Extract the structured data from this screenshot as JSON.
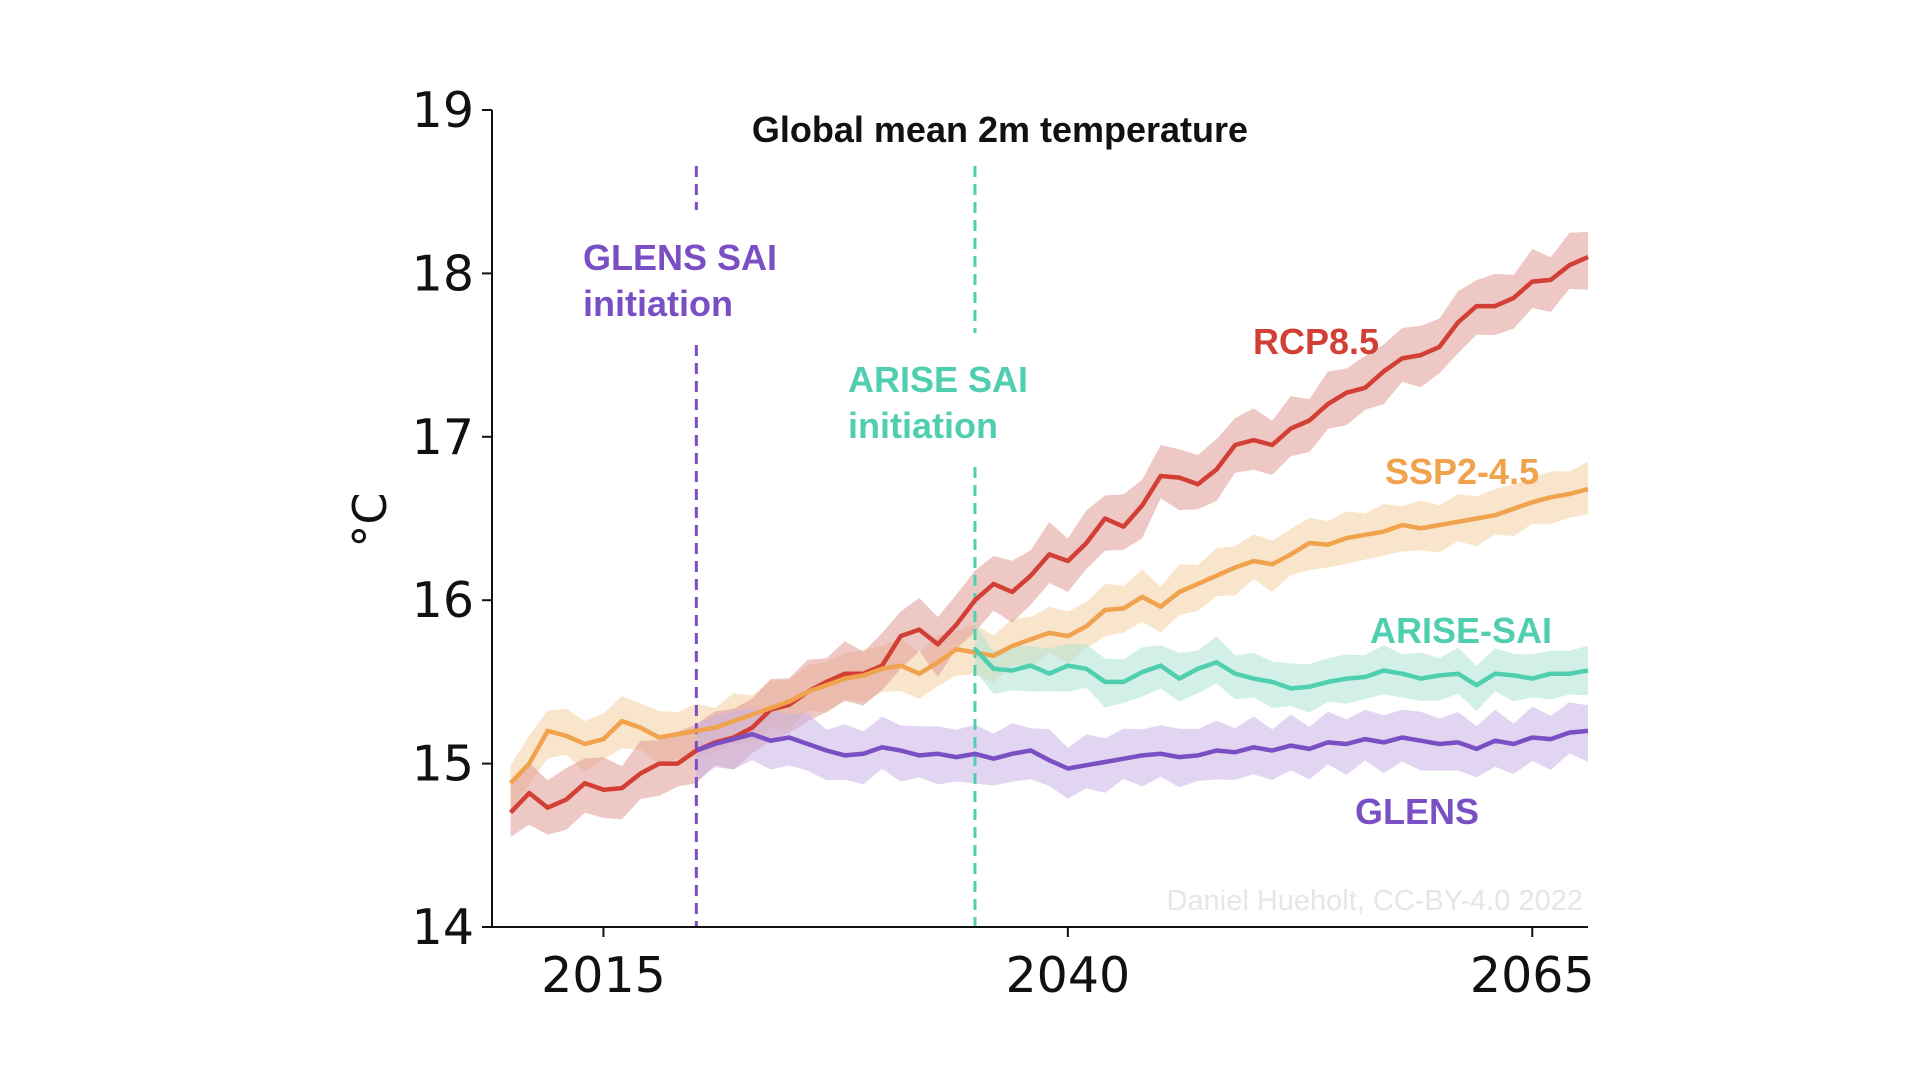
{
  "chart_data": {
    "type": "line",
    "title": "Global mean 2m temperature",
    "ylabel": "°C",
    "xlabel": "",
    "xlim": [
      2009,
      2068
    ],
    "ylim": [
      14,
      19
    ],
    "xticks": [
      2015,
      2040,
      2065
    ],
    "yticks": [
      14,
      15,
      16,
      17,
      18,
      19
    ],
    "legend": "inline labels",
    "credit": "Daniel Hueholt, CC-BY-4.0 2022",
    "vlines": [
      {
        "x": 2020,
        "label_line1": "GLENS SAI",
        "label_line2": "initiation",
        "color": "#7a4fc4"
      },
      {
        "x": 2035,
        "label_line1": "ARISE SAI",
        "label_line2": "initiation",
        "color": "#4fcfb0"
      }
    ],
    "series": [
      {
        "name": "RCP8.5",
        "color": "#d23f35",
        "band_color": "#e09a96",
        "x": [
          2010,
          2011,
          2012,
          2013,
          2014,
          2015,
          2016,
          2017,
          2018,
          2019,
          2020,
          2021,
          2022,
          2023,
          2024,
          2025,
          2026,
          2027,
          2028,
          2029,
          2030,
          2031,
          2032,
          2033,
          2034,
          2035,
          2036,
          2037,
          2038,
          2039,
          2040,
          2041,
          2042,
          2043,
          2044,
          2045,
          2046,
          2047,
          2048,
          2049,
          2050,
          2051,
          2052,
          2053,
          2054,
          2055,
          2056,
          2057,
          2058,
          2059,
          2060,
          2061,
          2062,
          2063,
          2064,
          2065,
          2066,
          2067,
          2068
        ],
        "values": [
          14.7,
          14.82,
          14.73,
          14.78,
          14.88,
          14.84,
          14.85,
          14.94,
          15.0,
          15.0,
          15.08,
          15.13,
          15.16,
          15.22,
          15.33,
          15.36,
          15.44,
          15.5,
          15.55,
          15.55,
          15.6,
          15.78,
          15.82,
          15.73,
          15.85,
          16.0,
          16.1,
          16.05,
          16.15,
          16.28,
          16.24,
          16.35,
          16.5,
          16.45,
          16.58,
          16.76,
          16.75,
          16.71,
          16.8,
          16.95,
          16.98,
          16.95,
          17.05,
          17.1,
          17.2,
          17.27,
          17.3,
          17.4,
          17.48,
          17.5,
          17.55,
          17.7,
          17.8,
          17.8,
          17.85,
          17.95,
          17.96,
          18.05,
          18.1
        ],
        "spread": 0.2
      },
      {
        "name": "SSP2-4.5",
        "color": "#f0a24c",
        "band_color": "#f4cfa0",
        "x": [
          2010,
          2011,
          2012,
          2013,
          2014,
          2015,
          2016,
          2017,
          2018,
          2019,
          2020,
          2021,
          2022,
          2023,
          2024,
          2025,
          2026,
          2027,
          2028,
          2029,
          2030,
          2031,
          2032,
          2033,
          2034,
          2035,
          2036,
          2037,
          2038,
          2039,
          2040,
          2041,
          2042,
          2043,
          2044,
          2045,
          2046,
          2047,
          2048,
          2049,
          2050,
          2051,
          2052,
          2053,
          2054,
          2055,
          2056,
          2057,
          2058,
          2059,
          2060,
          2061,
          2062,
          2063,
          2064,
          2065,
          2066,
          2067,
          2068
        ],
        "values": [
          14.88,
          15.0,
          15.2,
          15.17,
          15.12,
          15.15,
          15.26,
          15.22,
          15.16,
          15.18,
          15.2,
          15.22,
          15.26,
          15.3,
          15.34,
          15.38,
          15.44,
          15.48,
          15.52,
          15.54,
          15.58,
          15.6,
          15.55,
          15.62,
          15.7,
          15.68,
          15.66,
          15.72,
          15.76,
          15.8,
          15.78,
          15.84,
          15.94,
          15.95,
          16.02,
          15.96,
          16.05,
          16.1,
          16.15,
          16.2,
          16.24,
          16.22,
          16.28,
          16.35,
          16.34,
          16.38,
          16.4,
          16.42,
          16.46,
          16.44,
          16.46,
          16.48,
          16.5,
          16.52,
          16.56,
          16.6,
          16.63,
          16.65,
          16.68
        ],
        "spread": 0.17
      },
      {
        "name": "ARISE-SAI",
        "color": "#4fcfb0",
        "band_color": "#aee4d6",
        "x": [
          2035,
          2036,
          2037,
          2038,
          2039,
          2040,
          2041,
          2042,
          2043,
          2044,
          2045,
          2046,
          2047,
          2048,
          2049,
          2050,
          2051,
          2052,
          2053,
          2054,
          2055,
          2056,
          2057,
          2058,
          2059,
          2060,
          2061,
          2062,
          2063,
          2064,
          2065,
          2066,
          2067,
          2068
        ],
        "values": [
          15.7,
          15.58,
          15.57,
          15.6,
          15.55,
          15.6,
          15.58,
          15.5,
          15.5,
          15.56,
          15.6,
          15.52,
          15.58,
          15.62,
          15.55,
          15.52,
          15.5,
          15.46,
          15.47,
          15.5,
          15.52,
          15.53,
          15.57,
          15.55,
          15.52,
          15.54,
          15.55,
          15.48,
          15.55,
          15.54,
          15.52,
          15.55,
          15.55,
          15.57
        ],
        "spread": 0.16
      },
      {
        "name": "GLENS",
        "color": "#7a4fc4",
        "band_color": "#c8b3e6",
        "x": [
          2020,
          2021,
          2022,
          2023,
          2024,
          2025,
          2026,
          2027,
          2028,
          2029,
          2030,
          2031,
          2032,
          2033,
          2034,
          2035,
          2036,
          2037,
          2038,
          2039,
          2040,
          2041,
          2042,
          2043,
          2044,
          2045,
          2046,
          2047,
          2048,
          2049,
          2050,
          2051,
          2052,
          2053,
          2054,
          2055,
          2056,
          2057,
          2058,
          2059,
          2060,
          2061,
          2062,
          2063,
          2064,
          2065,
          2066,
          2067,
          2068
        ],
        "values": [
          15.08,
          15.12,
          15.15,
          15.18,
          15.14,
          15.16,
          15.12,
          15.08,
          15.05,
          15.06,
          15.1,
          15.08,
          15.05,
          15.06,
          15.04,
          15.06,
          15.03,
          15.06,
          15.08,
          15.02,
          14.97,
          14.99,
          15.01,
          15.03,
          15.05,
          15.06,
          15.04,
          15.05,
          15.08,
          15.07,
          15.1,
          15.08,
          15.11,
          15.09,
          15.13,
          15.12,
          15.15,
          15.13,
          15.16,
          15.14,
          15.12,
          15.13,
          15.09,
          15.14,
          15.12,
          15.16,
          15.15,
          15.19,
          15.2
        ],
        "spread": 0.19
      }
    ]
  }
}
